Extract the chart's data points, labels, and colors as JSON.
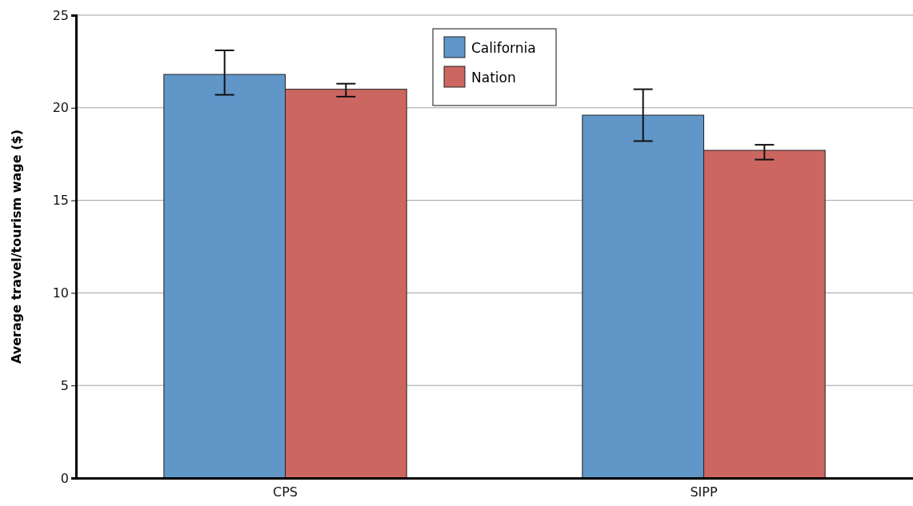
{
  "chart_data": {
    "type": "bar",
    "ylabel": "Average travel/tourism wage ($)",
    "categories": [
      "CPS",
      "SIPP"
    ],
    "series": [
      {
        "name": "California",
        "color": "#6096c8",
        "values": [
          21.8,
          19.6
        ],
        "errors": [
          [
            20.7,
            23.1
          ],
          [
            18.2,
            21.0
          ]
        ]
      },
      {
        "name": "Nation",
        "color": "#cc6660",
        "values": [
          21.0,
          17.7
        ],
        "errors": [
          [
            20.6,
            21.3
          ],
          [
            17.2,
            18.0
          ]
        ]
      }
    ],
    "ylim": [
      0,
      25
    ],
    "yticks": [
      0,
      5,
      10,
      15,
      20,
      25
    ],
    "grid": "y",
    "legend": "top"
  }
}
